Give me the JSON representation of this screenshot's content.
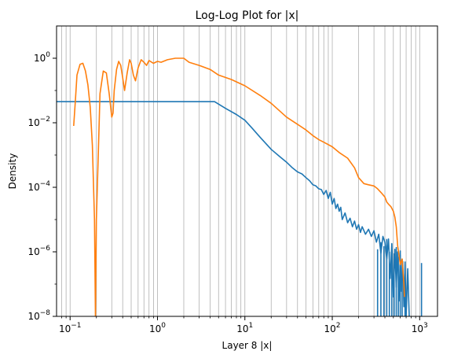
{
  "chart_data": {
    "type": "line",
    "title": "Log-Log Plot for |x|",
    "xlabel": "Layer 8 |x|",
    "ylabel": "Density",
    "xscale": "log",
    "yscale": "log",
    "xlim": [
      0.07,
      1600
    ],
    "ylim": [
      1e-08,
      10
    ],
    "grid": "x-minor-vertical",
    "legend": "none",
    "x_ticks": [
      {
        "value": 0.1,
        "base": "10",
        "exp": "−1"
      },
      {
        "value": 1,
        "base": "10",
        "exp": "0"
      },
      {
        "value": 10,
        "base": "10",
        "exp": "1"
      },
      {
        "value": 100,
        "base": "10",
        "exp": "2"
      },
      {
        "value": 1000,
        "base": "10",
        "exp": "3"
      }
    ],
    "y_ticks": [
      {
        "value": 1e-08,
        "base": "10",
        "exp": "−8"
      },
      {
        "value": 1e-06,
        "base": "10",
        "exp": "−6"
      },
      {
        "value": 0.0001,
        "base": "10",
        "exp": "−4"
      },
      {
        "value": 0.01,
        "base": "10",
        "exp": "−2"
      },
      {
        "value": 1,
        "base": "10",
        "exp": "0"
      }
    ],
    "series": [
      {
        "color": "#1f77b4",
        "points": [
          [
            0.07,
            0.045
          ],
          [
            4.5,
            0.045
          ],
          [
            6,
            0.028
          ],
          [
            8,
            0.018
          ],
          [
            10,
            0.012
          ],
          [
            12,
            0.007
          ],
          [
            15,
            0.0035
          ],
          [
            20,
            0.0015
          ],
          [
            25,
            0.0009
          ],
          [
            30,
            0.0006
          ],
          [
            35,
            0.0004
          ],
          [
            40,
            0.0003
          ],
          [
            45,
            0.00026
          ],
          [
            50,
            0.0002
          ],
          [
            55,
            0.00016
          ],
          [
            60,
            0.00012
          ],
          [
            65,
            0.00011
          ],
          [
            70,
            9e-05
          ],
          [
            75,
            8.5e-05
          ],
          [
            80,
            6e-05
          ],
          [
            85,
            8e-05
          ],
          [
            90,
            4.5e-05
          ],
          [
            95,
            7e-05
          ],
          [
            100,
            3e-05
          ],
          [
            105,
            4.5e-05
          ],
          [
            110,
            2.2e-05
          ],
          [
            115,
            3e-05
          ],
          [
            120,
            1.8e-05
          ],
          [
            125,
            2.4e-05
          ],
          [
            130,
            1e-05
          ],
          [
            140,
            1.6e-05
          ],
          [
            150,
            8e-06
          ],
          [
            160,
            1.1e-05
          ],
          [
            170,
            6e-06
          ],
          [
            180,
            9e-06
          ],
          [
            190,
            5e-06
          ],
          [
            200,
            7e-06
          ],
          [
            210,
            4e-06
          ],
          [
            220,
            6e-06
          ],
          [
            240,
            3.5e-06
          ],
          [
            260,
            5e-06
          ],
          [
            280,
            3e-06
          ],
          [
            300,
            4.5e-06
          ],
          [
            320,
            2e-06
          ],
          [
            340,
            3.5e-06
          ],
          [
            360,
            9e-07
          ],
          [
            380,
            3e-06
          ],
          [
            400,
            2e-06
          ],
          [
            420,
            6e-07
          ],
          [
            440,
            2.5e-06
          ],
          [
            460,
            1.5e-07
          ],
          [
            480,
            1.8e-06
          ],
          [
            500,
            4e-08
          ],
          [
            520,
            1.2e-06
          ],
          [
            540,
            8e-08
          ],
          [
            560,
            1e-06
          ],
          [
            580,
            3e-08
          ],
          [
            600,
            8e-07
          ],
          [
            620,
            6e-08
          ],
          [
            640,
            5e-07
          ],
          [
            660,
            2e-08
          ],
          [
            680,
            4e-07
          ],
          [
            700,
            1e-08
          ],
          [
            730,
            3e-07
          ],
          [
            760,
            1e-08
          ]
        ],
        "spikes": [
          330,
          360,
          390,
          420,
          450,
          480,
          510,
          540,
          570,
          600,
          630,
          680,
          1050
        ],
        "spike_top": [
          1.2e-06,
          2e-06,
          1.5e-06,
          2.5e-06,
          1e-06,
          1.8e-06,
          9e-07,
          1.4e-06,
          7e-07,
          1.1e-06,
          6e-07,
          5e-07,
          4.5e-07
        ]
      },
      {
        "color": "#ff7f0e",
        "points": [
          [
            0.11,
            0.008
          ],
          [
            0.115,
            0.05
          ],
          [
            0.12,
            0.3
          ],
          [
            0.13,
            0.65
          ],
          [
            0.14,
            0.7
          ],
          [
            0.15,
            0.4
          ],
          [
            0.16,
            0.15
          ],
          [
            0.17,
            0.03
          ],
          [
            0.18,
            0.002
          ],
          [
            0.19,
            1e-05
          ],
          [
            0.195,
            1e-08
          ],
          [
            0.2,
            1e-05
          ],
          [
            0.21,
            0.001
          ],
          [
            0.22,
            0.08
          ],
          [
            0.24,
            0.4
          ],
          [
            0.26,
            0.35
          ],
          [
            0.28,
            0.08
          ],
          [
            0.3,
            0.015
          ],
          [
            0.31,
            0.02
          ],
          [
            0.32,
            0.1
          ],
          [
            0.34,
            0.45
          ],
          [
            0.36,
            0.8
          ],
          [
            0.38,
            0.6
          ],
          [
            0.4,
            0.25
          ],
          [
            0.42,
            0.1
          ],
          [
            0.45,
            0.35
          ],
          [
            0.48,
            0.9
          ],
          [
            0.5,
            0.7
          ],
          [
            0.53,
            0.3
          ],
          [
            0.56,
            0.2
          ],
          [
            0.6,
            0.5
          ],
          [
            0.65,
            0.9
          ],
          [
            0.7,
            0.75
          ],
          [
            0.75,
            0.6
          ],
          [
            0.8,
            0.85
          ],
          [
            0.9,
            0.7
          ],
          [
            1.0,
            0.8
          ],
          [
            1.1,
            0.75
          ],
          [
            1.3,
            0.9
          ],
          [
            1.6,
            1.0
          ],
          [
            2.0,
            1.0
          ],
          [
            2.3,
            0.75
          ],
          [
            3,
            0.6
          ],
          [
            4,
            0.45
          ],
          [
            5,
            0.3
          ],
          [
            7,
            0.22
          ],
          [
            10,
            0.14
          ],
          [
            15,
            0.07
          ],
          [
            20,
            0.04
          ],
          [
            30,
            0.015
          ],
          [
            40,
            0.009
          ],
          [
            50,
            0.006
          ],
          [
            60,
            0.004
          ],
          [
            70,
            0.003
          ],
          [
            80,
            0.0025
          ],
          [
            100,
            0.0018
          ],
          [
            120,
            0.0012
          ],
          [
            150,
            0.0008
          ],
          [
            180,
            0.0004
          ],
          [
            200,
            0.0002
          ],
          [
            230,
            0.00013
          ],
          [
            260,
            0.00012
          ],
          [
            300,
            0.00011
          ],
          [
            330,
            9e-05
          ],
          [
            360,
            7e-05
          ],
          [
            400,
            5e-05
          ],
          [
            420,
            3.5e-05
          ],
          [
            440,
            3e-05
          ],
          [
            470,
            2.5e-05
          ],
          [
            500,
            1.8e-05
          ],
          [
            520,
            1.2e-05
          ],
          [
            540,
            6e-06
          ],
          [
            560,
            1.5e-06
          ],
          [
            580,
            8e-07
          ],
          [
            600,
            4e-07
          ],
          [
            630,
            6e-07
          ],
          [
            660,
            1e-07
          ],
          [
            670,
            4e-08
          ]
        ]
      }
    ]
  }
}
